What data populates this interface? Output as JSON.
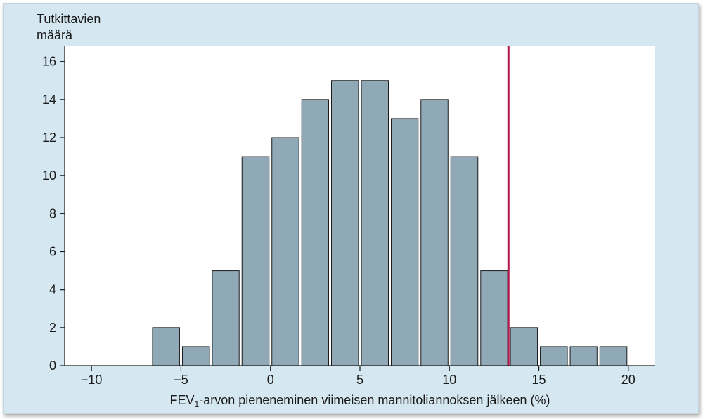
{
  "chart_data": {
    "type": "bar",
    "title": "",
    "ylabel_lines": [
      "Tutkittavien",
      "määrä"
    ],
    "xlabel_parts": [
      "FEV",
      "1",
      "-arvon pieneneminen viimeisen mannitoliannoksen jälkeen (%)"
    ],
    "bins": [
      {
        "from": -10,
        "to": -8.33,
        "value": 0
      },
      {
        "from": -8.33,
        "to": -6.67,
        "value": 0
      },
      {
        "from": -6.67,
        "to": -5,
        "value": 2
      },
      {
        "from": -5,
        "to": -3.33,
        "value": 1
      },
      {
        "from": -3.33,
        "to": -1.67,
        "value": 5
      },
      {
        "from": -1.67,
        "to": 0,
        "value": 11
      },
      {
        "from": 0,
        "to": 1.67,
        "value": 12
      },
      {
        "from": 1.67,
        "to": 3.33,
        "value": 14
      },
      {
        "from": 3.33,
        "to": 5,
        "value": 15
      },
      {
        "from": 5,
        "to": 6.67,
        "value": 15
      },
      {
        "from": 6.67,
        "to": 8.33,
        "value": 13
      },
      {
        "from": 8.33,
        "to": 10,
        "value": 14
      },
      {
        "from": 10,
        "to": 11.67,
        "value": 11
      },
      {
        "from": 11.67,
        "to": 13.33,
        "value": 5
      },
      {
        "from": 13.33,
        "to": 15,
        "value": 2
      },
      {
        "from": 15,
        "to": 16.67,
        "value": 1
      },
      {
        "from": 16.67,
        "to": 18.33,
        "value": 1
      },
      {
        "from": 18.33,
        "to": 20,
        "value": 1
      }
    ],
    "xticks": [
      "−10",
      "−5",
      "0",
      "5",
      "10",
      "15",
      "20"
    ],
    "xtick_values": [
      -10,
      -5,
      0,
      5,
      10,
      15,
      20
    ],
    "yticks": [
      "0",
      "2",
      "4",
      "6",
      "8",
      "10",
      "12",
      "14",
      "16"
    ],
    "ytick_values": [
      0,
      2,
      4,
      6,
      8,
      10,
      12,
      14,
      16
    ],
    "xlim": [
      -11.5,
      21.5
    ],
    "ylim": [
      0,
      16.8
    ],
    "reference_line_x": 13.3,
    "grid": false,
    "colors": {
      "panel_background": "#d5e7f1",
      "plot_background": "#ffffff",
      "bar_fill": "#8fa9b7",
      "bar_stroke": "#1a1a1a",
      "reference_line": "#b5174b",
      "axis": "#1a1a1a"
    }
  }
}
